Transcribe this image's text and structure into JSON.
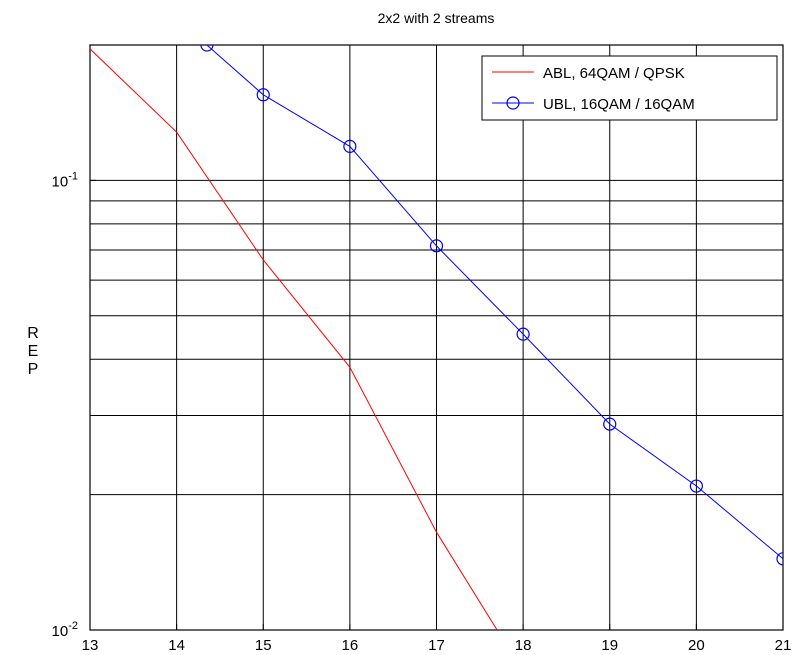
{
  "chart_data": {
    "type": "line",
    "title": "2x2 with 2 streams",
    "xlabel": "",
    "ylabel": "REP",
    "yscale": "log",
    "xlim": [
      13,
      21
    ],
    "ylim": [
      0.01,
      0.2
    ],
    "grid": true,
    "legend_position": "top-right",
    "xticks": [
      13,
      14,
      15,
      16,
      17,
      18,
      19,
      20,
      21
    ],
    "yticks": [
      {
        "value": 0.1,
        "base": "10",
        "exp": "-1"
      },
      {
        "value": 0.01,
        "base": "10",
        "exp": "-2"
      }
    ],
    "series": [
      {
        "name": "ABL, 64QAM / QPSK",
        "color": "#ff0000",
        "marker": "none",
        "x": [
          13,
          14,
          15,
          16,
          17,
          17.7
        ],
        "y": [
          0.196,
          0.128,
          0.0665,
          0.0384,
          0.0165,
          0.01
        ]
      },
      {
        "name": "UBL, 16QAM / 16QAM",
        "color": "#0000ff",
        "marker": "circle",
        "x": [
          14.35,
          15,
          16,
          17,
          18,
          19,
          20,
          21
        ],
        "y": [
          0.2,
          0.155,
          0.119,
          0.0715,
          0.0455,
          0.0287,
          0.0209,
          0.0144
        ]
      }
    ]
  }
}
